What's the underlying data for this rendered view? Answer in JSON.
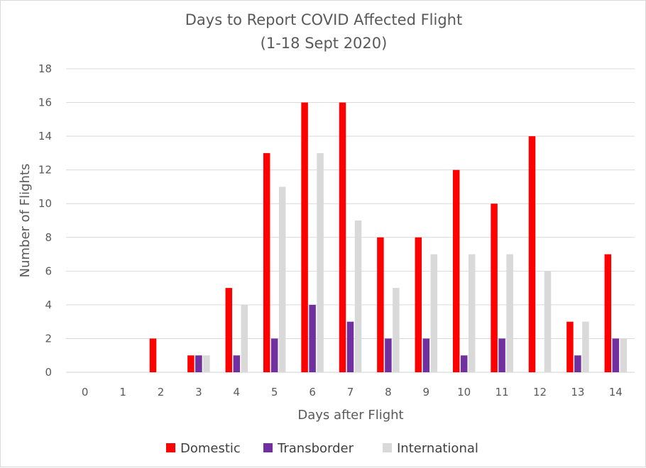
{
  "chart_data": {
    "type": "bar",
    "title": "Days to Report COVID Affected Flight",
    "subtitle": "(1-18 Sept 2020)",
    "xlabel": "Days after Flight",
    "ylabel": "Number of Flights",
    "categories": [
      "0",
      "1",
      "2",
      "3",
      "4",
      "5",
      "6",
      "7",
      "8",
      "9",
      "10",
      "11",
      "12",
      "13",
      "14"
    ],
    "ylim": [
      0,
      18
    ],
    "yticks": [
      "0",
      "2",
      "4",
      "6",
      "8",
      "10",
      "12",
      "14",
      "16",
      "18"
    ],
    "grid": true,
    "legend_position": "bottom",
    "series": [
      {
        "name": "Domestic",
        "color": "#ff0000",
        "values": [
          0,
          0,
          2,
          1,
          5,
          13,
          16,
          16,
          8,
          8,
          12,
          10,
          14,
          3,
          7
        ]
      },
      {
        "name": "Transborder",
        "color": "#7030a0",
        "values": [
          0,
          0,
          0,
          1,
          1,
          2,
          4,
          3,
          2,
          2,
          1,
          2,
          0,
          1,
          2
        ]
      },
      {
        "name": "International",
        "color": "#d9d9d9",
        "values": [
          0,
          0,
          0,
          1,
          4,
          11,
          13,
          9,
          5,
          7,
          7,
          7,
          6,
          3,
          2
        ]
      }
    ]
  }
}
